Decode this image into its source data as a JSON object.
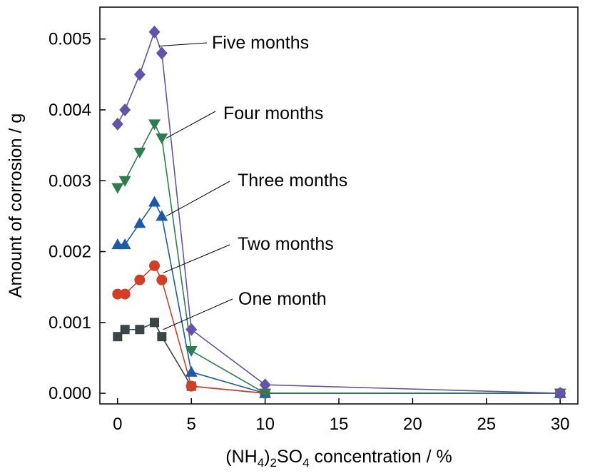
{
  "chart_data": {
    "type": "line",
    "title": "",
    "xlabel": {
      "prefix": "(NH",
      "sub1": "4",
      "mid": ")",
      "sub2": "2",
      "mid2": "SO",
      "sub3": "4",
      "suffix": " concentration / %"
    },
    "ylabel": "Amount of corrosion / g",
    "xlim": [
      -1.2,
      31.2
    ],
    "ylim": [
      -0.00015,
      0.00545
    ],
    "xticks": [
      0,
      5,
      10,
      15,
      20,
      25,
      30
    ],
    "xtick_labels": [
      "0",
      "5",
      "10",
      "15",
      "20",
      "25",
      "30"
    ],
    "yticks": [
      0.0,
      0.001,
      0.002,
      0.003,
      0.004,
      0.005
    ],
    "ytick_labels": [
      "0.000",
      "0.001",
      "0.002",
      "0.003",
      "0.004",
      "0.005"
    ],
    "grid": false,
    "x": [
      0,
      0.5,
      1.5,
      2.5,
      3,
      5,
      10,
      30
    ],
    "series": [
      {
        "name": "One month",
        "marker": "square",
        "color": "#3d4447",
        "values": [
          0.0008,
          0.0009,
          0.0009,
          0.001,
          0.0008,
          0.0001,
          0.0,
          0.0
        ]
      },
      {
        "name": "Two months",
        "marker": "circle",
        "color": "#d23f27",
        "values": [
          0.0014,
          0.0014,
          0.0016,
          0.0018,
          0.0016,
          0.0001,
          0.0,
          0.0
        ]
      },
      {
        "name": "Three months",
        "marker": "triangle-up",
        "color": "#1d5aa8",
        "values": [
          0.0021,
          0.0021,
          0.0024,
          0.0027,
          0.0025,
          0.0003,
          0.0,
          0.0
        ]
      },
      {
        "name": "Four months",
        "marker": "triangle-down",
        "color": "#2e7d4f",
        "values": [
          0.0029,
          0.003,
          0.0034,
          0.0038,
          0.0036,
          0.0006,
          0.0,
          0.0
        ]
      },
      {
        "name": "Five months",
        "marker": "diamond",
        "color": "#6553a8",
        "values": [
          0.0038,
          0.004,
          0.0045,
          0.0051,
          0.0048,
          0.0009,
          0.00012,
          0.0
        ]
      }
    ],
    "annotations": [
      {
        "series": "Five months",
        "text": "Five months",
        "point_x": 2.5,
        "point_y": 0.0049
      },
      {
        "series": "Four months",
        "text": "Four months",
        "point_x": 3.0,
        "point_y": 0.0036
      },
      {
        "series": "Three months",
        "text": "Three months",
        "point_x": 3.0,
        "point_y": 0.0025
      },
      {
        "series": "Two months",
        "text": "Two months",
        "point_x": 2.8,
        "point_y": 0.0017
      },
      {
        "series": "One month",
        "text": "One month",
        "point_x": 2.8,
        "point_y": 0.0009
      }
    ]
  }
}
